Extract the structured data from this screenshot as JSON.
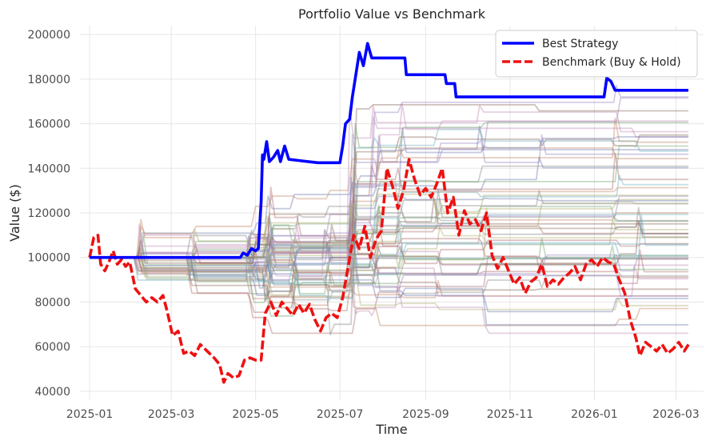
{
  "chart_data": {
    "type": "line",
    "title": "Portfolio Value vs Benchmark",
    "xlabel": "Time",
    "ylabel": "Value ($)",
    "xlim": [
      "2024-12-25",
      "2026-03-21"
    ],
    "ylim": [
      36000,
      204000
    ],
    "x_ticks": [
      "2025-01",
      "2025-03",
      "2025-05",
      "2025-07",
      "2025-09",
      "2025-11",
      "2026-01",
      "2026-03"
    ],
    "x_tick_dates": [
      "2025-01-01",
      "2025-03-01",
      "2025-05-01",
      "2025-07-01",
      "2025-09-01",
      "2025-11-01",
      "2026-01-01",
      "2026-03-01"
    ],
    "y_ticks": [
      40000,
      60000,
      80000,
      100000,
      120000,
      140000,
      160000,
      180000,
      200000
    ],
    "grid": true,
    "legend_position": "top-right",
    "series": [
      {
        "name": "Best Strategy",
        "color": "#0000ff",
        "style": "solid",
        "points": [
          [
            "2025-01-01",
            100000
          ],
          [
            "2025-04-20",
            100000
          ],
          [
            "2025-04-22",
            102000
          ],
          [
            "2025-04-25",
            101000
          ],
          [
            "2025-04-28",
            104000
          ],
          [
            "2025-05-01",
            103000
          ],
          [
            "2025-05-03",
            104000
          ],
          [
            "2025-05-05",
            125000
          ],
          [
            "2025-05-06",
            146000
          ],
          [
            "2025-05-07",
            144000
          ],
          [
            "2025-05-09",
            152000
          ],
          [
            "2025-05-11",
            143000
          ],
          [
            "2025-05-14",
            145000
          ],
          [
            "2025-05-17",
            148000
          ],
          [
            "2025-05-19",
            143000
          ],
          [
            "2025-05-22",
            150000
          ],
          [
            "2025-05-25",
            144000
          ],
          [
            "2025-06-01",
            143500
          ],
          [
            "2025-06-15",
            142500
          ],
          [
            "2025-07-01",
            142500
          ],
          [
            "2025-07-03",
            150000
          ],
          [
            "2025-07-05",
            160000
          ],
          [
            "2025-07-08",
            162000
          ],
          [
            "2025-07-10",
            172000
          ],
          [
            "2025-07-12",
            180000
          ],
          [
            "2025-07-15",
            192000
          ],
          [
            "2025-07-18",
            186000
          ],
          [
            "2025-07-21",
            196000
          ],
          [
            "2025-07-24",
            189500
          ],
          [
            "2025-08-17",
            189500
          ],
          [
            "2025-08-18",
            182000
          ],
          [
            "2025-09-15",
            182000
          ],
          [
            "2025-09-16",
            178000
          ],
          [
            "2025-09-22",
            178000
          ],
          [
            "2025-09-23",
            172000
          ],
          [
            "2026-01-08",
            172000
          ],
          [
            "2026-01-10",
            180500
          ],
          [
            "2026-01-13",
            179000
          ],
          [
            "2026-01-16",
            175000
          ],
          [
            "2026-03-10",
            175000
          ]
        ]
      },
      {
        "name": "Benchmark (Buy & Hold)",
        "color": "#ee1111",
        "style": "dashed",
        "points": [
          [
            "2025-01-01",
            100000
          ],
          [
            "2025-01-04",
            109000
          ],
          [
            "2025-01-07",
            110000
          ],
          [
            "2025-01-09",
            97000
          ],
          [
            "2025-01-12",
            94000
          ],
          [
            "2025-01-15",
            98000
          ],
          [
            "2025-01-18",
            103000
          ],
          [
            "2025-01-21",
            97000
          ],
          [
            "2025-01-24",
            99000
          ],
          [
            "2025-01-27",
            96000
          ],
          [
            "2025-01-30",
            98000
          ],
          [
            "2025-02-03",
            86000
          ],
          [
            "2025-02-07",
            83000
          ],
          [
            "2025-02-11",
            80000
          ],
          [
            "2025-02-15",
            82000
          ],
          [
            "2025-02-19",
            80000
          ],
          [
            "2025-02-23",
            83000
          ],
          [
            "2025-02-26",
            76000
          ],
          [
            "2025-03-02",
            65000
          ],
          [
            "2025-03-06",
            67000
          ],
          [
            "2025-03-10",
            57000
          ],
          [
            "2025-03-14",
            58000
          ],
          [
            "2025-03-18",
            56000
          ],
          [
            "2025-03-22",
            61000
          ],
          [
            "2025-03-27",
            58000
          ],
          [
            "2025-04-01",
            55000
          ],
          [
            "2025-04-05",
            52000
          ],
          [
            "2025-04-08",
            44000
          ],
          [
            "2025-04-11",
            48000
          ],
          [
            "2025-04-15",
            46000
          ],
          [
            "2025-04-19",
            47000
          ],
          [
            "2025-04-23",
            54000
          ],
          [
            "2025-04-27",
            55000
          ],
          [
            "2025-05-01",
            54000
          ],
          [
            "2025-05-05",
            54000
          ],
          [
            "2025-05-08",
            75000
          ],
          [
            "2025-05-12",
            80000
          ],
          [
            "2025-05-16",
            74000
          ],
          [
            "2025-05-20",
            80000
          ],
          [
            "2025-05-24",
            77000
          ],
          [
            "2025-05-28",
            74000
          ],
          [
            "2025-06-01",
            79000
          ],
          [
            "2025-06-05",
            75000
          ],
          [
            "2025-06-09",
            79000
          ],
          [
            "2025-06-13",
            72000
          ],
          [
            "2025-06-17",
            67000
          ],
          [
            "2025-06-21",
            73000
          ],
          [
            "2025-06-25",
            75000
          ],
          [
            "2025-06-29",
            73000
          ],
          [
            "2025-07-03",
            82000
          ],
          [
            "2025-07-07",
            96000
          ],
          [
            "2025-07-11",
            110000
          ],
          [
            "2025-07-15",
            104000
          ],
          [
            "2025-07-19",
            114000
          ],
          [
            "2025-07-23",
            100000
          ],
          [
            "2025-07-27",
            108000
          ],
          [
            "2025-07-31",
            112000
          ],
          [
            "2025-08-04",
            140000
          ],
          [
            "2025-08-08",
            132000
          ],
          [
            "2025-08-12",
            122000
          ],
          [
            "2025-08-16",
            130000
          ],
          [
            "2025-08-20",
            144000
          ],
          [
            "2025-08-24",
            135000
          ],
          [
            "2025-08-28",
            128000
          ],
          [
            "2025-09-01",
            131000
          ],
          [
            "2025-09-05",
            127000
          ],
          [
            "2025-09-09",
            133000
          ],
          [
            "2025-09-13",
            140000
          ],
          [
            "2025-09-17",
            120000
          ],
          [
            "2025-09-21",
            127000
          ],
          [
            "2025-09-25",
            110000
          ],
          [
            "2025-09-29",
            121000
          ],
          [
            "2025-10-03",
            115000
          ],
          [
            "2025-10-07",
            117000
          ],
          [
            "2025-10-11",
            112000
          ],
          [
            "2025-10-15",
            120000
          ],
          [
            "2025-10-19",
            101000
          ],
          [
            "2025-10-23",
            95000
          ],
          [
            "2025-10-27",
            100000
          ],
          [
            "2025-10-31",
            94000
          ],
          [
            "2025-11-04",
            88000
          ],
          [
            "2025-11-08",
            91000
          ],
          [
            "2025-11-12",
            84000
          ],
          [
            "2025-11-16",
            89000
          ],
          [
            "2025-11-20",
            91000
          ],
          [
            "2025-11-24",
            97000
          ],
          [
            "2025-11-28",
            87000
          ],
          [
            "2025-12-02",
            90000
          ],
          [
            "2025-12-06",
            88000
          ],
          [
            "2025-12-10",
            91000
          ],
          [
            "2025-12-14",
            93000
          ],
          [
            "2025-12-18",
            96000
          ],
          [
            "2025-12-22",
            90000
          ],
          [
            "2025-12-26",
            97000
          ],
          [
            "2025-12-30",
            99000
          ],
          [
            "2026-01-03",
            96000
          ],
          [
            "2026-01-07",
            100000
          ],
          [
            "2026-01-11",
            98000
          ],
          [
            "2026-01-15",
            97000
          ],
          [
            "2026-01-19",
            90000
          ],
          [
            "2026-01-23",
            84000
          ],
          [
            "2026-01-27",
            72000
          ],
          [
            "2026-01-31",
            64000
          ],
          [
            "2026-02-03",
            56000
          ],
          [
            "2026-02-07",
            62000
          ],
          [
            "2026-02-11",
            60000
          ],
          [
            "2026-02-15",
            58000
          ],
          [
            "2026-02-19",
            61000
          ],
          [
            "2026-02-23",
            57000
          ],
          [
            "2026-02-27",
            59000
          ],
          [
            "2026-03-03",
            62000
          ],
          [
            "2026-03-07",
            58000
          ],
          [
            "2026-03-10",
            61000
          ]
        ]
      }
    ],
    "background_lines": {
      "count": 60,
      "colors": [
        "#6f7fb0",
        "#c0886a",
        "#77a877",
        "#b07070",
        "#9a86c0",
        "#8a6a5a",
        "#c090b8",
        "#8a8a8a",
        "#b0b070",
        "#70b0c0"
      ],
      "opacity": 0.42
    }
  }
}
